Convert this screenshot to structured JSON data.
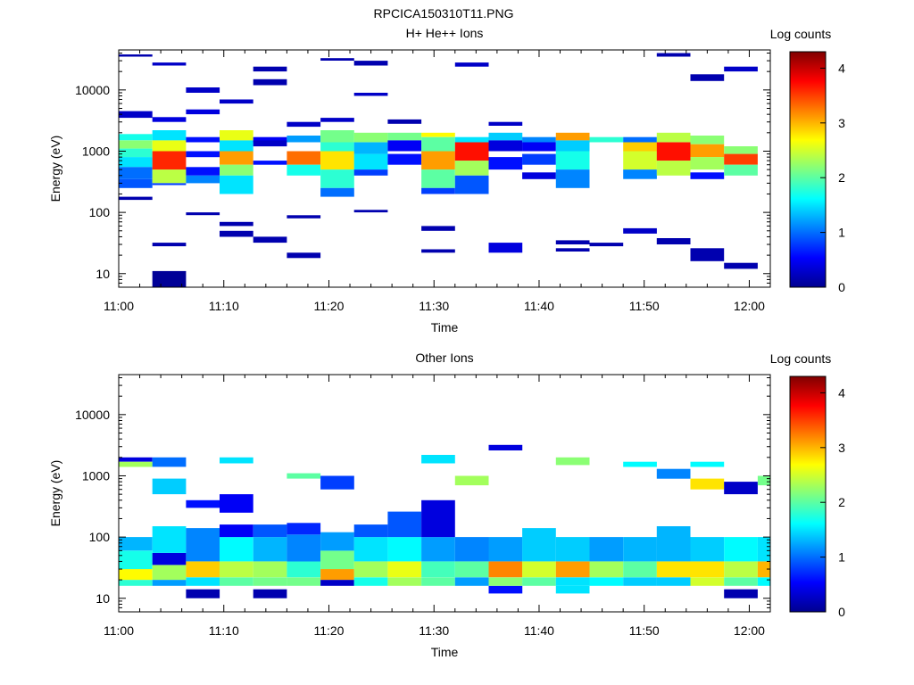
{
  "figure_title": "RPCICA150310T11.PNG",
  "colors": {
    "background": "#ffffff",
    "axis": "#000000",
    "colormap": "jet"
  },
  "chart_data": [
    {
      "type": "heatmap",
      "title": "H+ He++ Ions",
      "xlabel": "Time",
      "ylabel": "Energy (eV)",
      "yscale": "log",
      "ylim": [
        6,
        45000
      ],
      "x_tick_labels": [
        "11:00",
        "11:10",
        "11:20",
        "11:30",
        "11:40",
        "11:50",
        "12:00"
      ],
      "x_tick_minutes": [
        0,
        10,
        20,
        30,
        40,
        50,
        60
      ],
      "x_range_minutes": [
        0,
        62
      ],
      "y_tick_labels": [
        "10",
        "100",
        "1000",
        "10000"
      ],
      "y_tick_values": [
        10,
        100,
        1000,
        10000
      ],
      "colorbar": {
        "label": "Log counts",
        "range": [
          0,
          4.3
        ],
        "tick_labels": [
          "0",
          "1",
          "2",
          "3",
          "4"
        ],
        "tick_values": [
          0,
          1,
          2,
          3,
          4
        ]
      },
      "time_bins_minutes": [
        0,
        3.2,
        6.4,
        9.6,
        12.8,
        16.0,
        19.2,
        22.4,
        25.6,
        28.8,
        32.0,
        35.2,
        38.4,
        41.6,
        44.8,
        48.0,
        51.2,
        54.4,
        57.6,
        60.8,
        62.0
      ],
      "cells": [
        [
          0,
          1500,
          1900,
          1.7
        ],
        [
          0,
          1100,
          1500,
          2.2
        ],
        [
          0,
          800,
          1100,
          1.8
        ],
        [
          0,
          550,
          800,
          1.5
        ],
        [
          0,
          350,
          550,
          1.0
        ],
        [
          0,
          250,
          350,
          0.9
        ],
        [
          0,
          3500,
          4500,
          0.3
        ],
        [
          0,
          35000,
          38000,
          0.2
        ],
        [
          0,
          160,
          180,
          0.2
        ],
        [
          1,
          1500,
          2200,
          1.5
        ],
        [
          1,
          1000,
          1500,
          2.6
        ],
        [
          1,
          500,
          1000,
          3.6
        ],
        [
          1,
          300,
          500,
          2.4
        ],
        [
          1,
          280,
          300,
          0.8
        ],
        [
          1,
          3000,
          3600,
          0.4
        ],
        [
          1,
          6,
          11,
          0.1
        ],
        [
          1,
          28,
          32,
          0.2
        ],
        [
          1,
          25000,
          28000,
          0.3
        ],
        [
          2,
          1400,
          1700,
          0.6
        ],
        [
          2,
          800,
          1000,
          0.6
        ],
        [
          2,
          400,
          550,
          0.6
        ],
        [
          2,
          300,
          400,
          1.1
        ],
        [
          2,
          4000,
          4800,
          0.4
        ],
        [
          2,
          9000,
          11000,
          0.3
        ],
        [
          2,
          90,
          100,
          0.2
        ],
        [
          3,
          1500,
          2200,
          2.6
        ],
        [
          3,
          1000,
          1500,
          1.5
        ],
        [
          3,
          600,
          1000,
          3.1
        ],
        [
          3,
          400,
          600,
          2.2
        ],
        [
          3,
          200,
          400,
          1.5
        ],
        [
          3,
          40,
          50,
          0.2
        ],
        [
          3,
          60,
          70,
          0.2
        ],
        [
          3,
          6000,
          7000,
          0.3
        ],
        [
          4,
          1400,
          1700,
          0.5
        ],
        [
          4,
          600,
          700,
          0.6
        ],
        [
          4,
          1200,
          1500,
          0.3
        ],
        [
          4,
          32,
          40,
          0.2
        ],
        [
          4,
          12000,
          15000,
          0.2
        ],
        [
          4,
          20000,
          24000,
          0.2
        ],
        [
          5,
          1400,
          1800,
          1.2
        ],
        [
          5,
          600,
          1000,
          3.3
        ],
        [
          5,
          400,
          600,
          1.7
        ],
        [
          5,
          2500,
          3000,
          0.3
        ],
        [
          5,
          18,
          22,
          0.2
        ],
        [
          5,
          80,
          90,
          0.2
        ],
        [
          6,
          1400,
          2200,
          2.1
        ],
        [
          6,
          1000,
          1400,
          1.8
        ],
        [
          6,
          500,
          1000,
          2.8
        ],
        [
          6,
          250,
          500,
          1.8
        ],
        [
          6,
          180,
          250,
          1.0
        ],
        [
          6,
          3000,
          3500,
          0.3
        ],
        [
          6,
          30000,
          33000,
          0.2
        ],
        [
          7,
          1400,
          2000,
          2.2
        ],
        [
          7,
          900,
          1400,
          1.3
        ],
        [
          7,
          500,
          900,
          1.5
        ],
        [
          7,
          400,
          500,
          0.8
        ],
        [
          7,
          8000,
          9000,
          0.3
        ],
        [
          7,
          25000,
          30000,
          0.2
        ],
        [
          7,
          100,
          110,
          0.2
        ],
        [
          8,
          1500,
          2000,
          2.1
        ],
        [
          8,
          1000,
          1500,
          0.5
        ],
        [
          8,
          600,
          900,
          0.6
        ],
        [
          8,
          2800,
          3300,
          0.2
        ],
        [
          9,
          1700,
          2000,
          2.7
        ],
        [
          9,
          1000,
          1700,
          2.0
        ],
        [
          9,
          500,
          1000,
          3.1
        ],
        [
          9,
          250,
          500,
          2.0
        ],
        [
          9,
          200,
          250,
          0.8
        ],
        [
          9,
          22,
          25,
          0.2
        ],
        [
          9,
          50,
          60,
          0.2
        ],
        [
          10,
          1400,
          1700,
          1.5
        ],
        [
          10,
          700,
          1400,
          3.7
        ],
        [
          10,
          400,
          700,
          2.3
        ],
        [
          10,
          200,
          400,
          0.9
        ],
        [
          10,
          24000,
          28000,
          0.3
        ],
        [
          11,
          1500,
          2000,
          1.4
        ],
        [
          11,
          1000,
          1500,
          0.4
        ],
        [
          11,
          500,
          800,
          0.6
        ],
        [
          11,
          2600,
          3000,
          0.3
        ],
        [
          11,
          22,
          32,
          0.4
        ],
        [
          12,
          1400,
          1700,
          1.1
        ],
        [
          12,
          1000,
          1400,
          0.5
        ],
        [
          12,
          600,
          900,
          0.8
        ],
        [
          12,
          350,
          450,
          0.4
        ],
        [
          13,
          1500,
          2000,
          3.1
        ],
        [
          13,
          1000,
          1500,
          1.4
        ],
        [
          13,
          500,
          1000,
          1.7
        ],
        [
          13,
          250,
          500,
          1.1
        ],
        [
          13,
          30,
          35,
          0.2
        ],
        [
          13,
          23,
          26,
          0.2
        ],
        [
          14,
          1400,
          1700,
          1.8
        ],
        [
          14,
          28,
          32,
          0.2
        ],
        [
          15,
          1400,
          1700,
          1.0
        ],
        [
          15,
          1000,
          1400,
          2.9
        ],
        [
          15,
          500,
          1000,
          2.5
        ],
        [
          15,
          350,
          500,
          1.1
        ],
        [
          15,
          45,
          55,
          0.3
        ],
        [
          16,
          1400,
          2000,
          2.4
        ],
        [
          16,
          700,
          1400,
          3.7
        ],
        [
          16,
          400,
          700,
          2.4
        ],
        [
          16,
          30,
          38,
          0.2
        ],
        [
          16,
          35000,
          40000,
          0.2
        ],
        [
          17,
          1300,
          1800,
          2.2
        ],
        [
          17,
          800,
          1300,
          3.1
        ],
        [
          17,
          500,
          800,
          2.3
        ],
        [
          17,
          350,
          450,
          0.6
        ],
        [
          17,
          14000,
          18000,
          0.2
        ],
        [
          17,
          16,
          26,
          0.2
        ],
        [
          18,
          900,
          1200,
          2.2
        ],
        [
          18,
          600,
          900,
          3.5
        ],
        [
          18,
          400,
          600,
          2.0
        ],
        [
          18,
          12,
          15,
          0.2
        ],
        [
          18,
          20000,
          24000,
          0.3
        ]
      ]
    },
    {
      "type": "heatmap",
      "title": "Other Ions",
      "xlabel": "Time",
      "ylabel": "Energy (eV)",
      "yscale": "log",
      "ylim": [
        6,
        45000
      ],
      "x_tick_labels": [
        "11:00",
        "11:10",
        "11:20",
        "11:30",
        "11:40",
        "11:50",
        "12:00"
      ],
      "x_tick_minutes": [
        0,
        10,
        20,
        30,
        40,
        50,
        60
      ],
      "x_range_minutes": [
        0,
        62
      ],
      "y_tick_labels": [
        "10",
        "100",
        "1000",
        "10000"
      ],
      "y_tick_values": [
        10,
        100,
        1000,
        10000
      ],
      "colorbar": {
        "label": "Log counts",
        "range": [
          0,
          4.3
        ],
        "tick_labels": [
          "0",
          "1",
          "2",
          "3",
          "4"
        ],
        "tick_values": [
          0,
          1,
          2,
          3,
          4
        ]
      },
      "time_bins_minutes": [
        0,
        3.2,
        6.4,
        9.6,
        12.8,
        16.0,
        19.2,
        22.4,
        25.6,
        28.8,
        32.0,
        35.2,
        38.4,
        41.6,
        44.8,
        48.0,
        51.2,
        54.4,
        57.6,
        60.8,
        62.0
      ],
      "cells": [
        [
          0,
          16,
          20,
          1.8
        ],
        [
          0,
          20,
          30,
          2.7
        ],
        [
          0,
          30,
          60,
          1.7
        ],
        [
          0,
          60,
          100,
          1.3
        ],
        [
          0,
          1400,
          1700,
          2.3
        ],
        [
          0,
          1700,
          2000,
          0.4
        ],
        [
          1,
          16,
          20,
          1.2
        ],
        [
          1,
          20,
          35,
          2.3
        ],
        [
          1,
          35,
          55,
          0.4
        ],
        [
          1,
          55,
          150,
          1.5
        ],
        [
          1,
          500,
          900,
          1.4
        ],
        [
          1,
          1400,
          2000,
          1.0
        ],
        [
          2,
          10,
          14,
          0.2
        ],
        [
          2,
          16,
          22,
          1.5
        ],
        [
          2,
          22,
          40,
          2.9
        ],
        [
          2,
          40,
          140,
          1.1
        ],
        [
          2,
          300,
          400,
          0.6
        ],
        [
          3,
          16,
          22,
          2.0
        ],
        [
          3,
          22,
          40,
          2.4
        ],
        [
          3,
          40,
          100,
          1.6
        ],
        [
          3,
          100,
          160,
          0.5
        ],
        [
          3,
          250,
          500,
          0.5
        ],
        [
          3,
          1600,
          2000,
          1.5
        ],
        [
          4,
          10,
          14,
          0.2
        ],
        [
          4,
          16,
          22,
          2.1
        ],
        [
          4,
          22,
          40,
          2.3
        ],
        [
          4,
          40,
          100,
          1.3
        ],
        [
          4,
          100,
          160,
          0.9
        ],
        [
          5,
          16,
          22,
          2.1
        ],
        [
          5,
          22,
          40,
          1.8
        ],
        [
          5,
          40,
          110,
          1.1
        ],
        [
          5,
          110,
          170,
          0.7
        ],
        [
          5,
          900,
          1100,
          2.0
        ],
        [
          6,
          16,
          20,
          0.3
        ],
        [
          6,
          20,
          30,
          3.1
        ],
        [
          6,
          30,
          60,
          2.1
        ],
        [
          6,
          60,
          120,
          1.2
        ],
        [
          6,
          600,
          1000,
          0.8
        ],
        [
          7,
          16,
          22,
          1.7
        ],
        [
          7,
          22,
          40,
          2.3
        ],
        [
          7,
          40,
          100,
          1.5
        ],
        [
          7,
          100,
          160,
          0.9
        ],
        [
          8,
          16,
          22,
          2.3
        ],
        [
          8,
          22,
          40,
          2.6
        ],
        [
          8,
          40,
          100,
          1.6
        ],
        [
          8,
          100,
          260,
          0.9
        ],
        [
          9,
          16,
          22,
          2.0
        ],
        [
          9,
          22,
          40,
          1.9
        ],
        [
          9,
          40,
          100,
          1.2
        ],
        [
          9,
          100,
          400,
          0.4
        ],
        [
          9,
          1600,
          2200,
          1.5
        ],
        [
          10,
          16,
          22,
          1.2
        ],
        [
          10,
          22,
          40,
          2.0
        ],
        [
          10,
          40,
          100,
          1.1
        ],
        [
          10,
          700,
          1000,
          2.3
        ],
        [
          11,
          12,
          16,
          0.6
        ],
        [
          11,
          16,
          22,
          2.2
        ],
        [
          11,
          22,
          40,
          3.2
        ],
        [
          11,
          40,
          100,
          1.2
        ],
        [
          11,
          2600,
          3200,
          0.4
        ],
        [
          12,
          16,
          22,
          2.0
        ],
        [
          12,
          22,
          40,
          2.5
        ],
        [
          12,
          40,
          140,
          1.4
        ],
        [
          13,
          12,
          16,
          1.5
        ],
        [
          13,
          16,
          22,
          1.5
        ],
        [
          13,
          22,
          40,
          3.1
        ],
        [
          13,
          40,
          100,
          1.4
        ],
        [
          13,
          1500,
          2000,
          2.2
        ],
        [
          14,
          16,
          22,
          1.6
        ],
        [
          14,
          22,
          40,
          2.3
        ],
        [
          14,
          40,
          100,
          1.2
        ],
        [
          15,
          16,
          22,
          1.4
        ],
        [
          15,
          22,
          40,
          2.0
        ],
        [
          15,
          40,
          100,
          1.3
        ],
        [
          15,
          1400,
          1700,
          1.6
        ],
        [
          16,
          16,
          22,
          1.4
        ],
        [
          16,
          22,
          40,
          2.8
        ],
        [
          16,
          40,
          150,
          1.3
        ],
        [
          16,
          900,
          1300,
          1.1
        ],
        [
          17,
          16,
          22,
          2.5
        ],
        [
          17,
          22,
          40,
          2.8
        ],
        [
          17,
          40,
          100,
          1.4
        ],
        [
          17,
          600,
          900,
          2.8
        ],
        [
          17,
          1400,
          1700,
          1.6
        ],
        [
          18,
          10,
          14,
          0.2
        ],
        [
          18,
          16,
          22,
          2.0
        ],
        [
          18,
          22,
          40,
          2.4
        ],
        [
          18,
          40,
          100,
          1.6
        ],
        [
          18,
          500,
          800,
          0.3
        ],
        [
          19,
          16,
          22,
          1.6
        ],
        [
          19,
          22,
          40,
          3.0
        ],
        [
          19,
          40,
          100,
          1.5
        ],
        [
          19,
          700,
          1000,
          2.1
        ]
      ]
    }
  ]
}
